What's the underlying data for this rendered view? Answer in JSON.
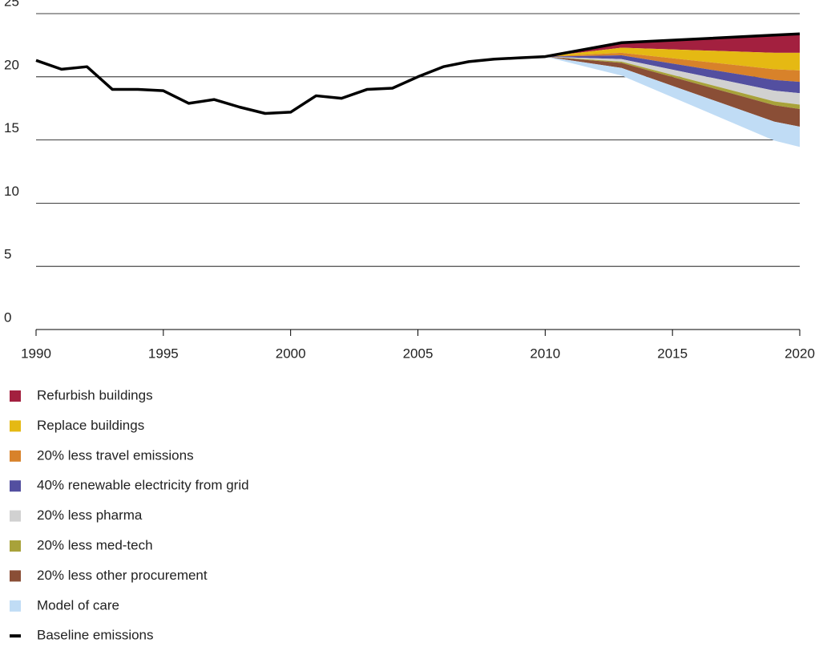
{
  "chart_data": {
    "type": "area",
    "xlim": [
      1990,
      2020
    ],
    "xticks": [
      1990,
      1995,
      2000,
      2005,
      2010,
      2015,
      2020
    ],
    "ylim": [
      0,
      25
    ],
    "yticks": [
      0,
      5,
      10,
      15,
      20,
      25
    ],
    "grid": true,
    "legend": "bottom-left",
    "baseline": {
      "name": "Baseline emissions",
      "color": "#000000",
      "x": [
        1990,
        1991,
        1992,
        1993,
        1994,
        1995,
        1996,
        1997,
        1998,
        1999,
        2000,
        2001,
        2002,
        2003,
        2004,
        2005,
        2006,
        2007,
        2008,
        2009,
        2010,
        2013,
        2019,
        2020
      ],
      "values": [
        21.3,
        20.6,
        20.8,
        19.0,
        19.0,
        18.9,
        17.9,
        18.2,
        17.6,
        17.1,
        17.2,
        18.5,
        18.3,
        19.0,
        19.1,
        20.0,
        20.8,
        21.2,
        21.4,
        21.5,
        21.6,
        22.7,
        23.3,
        23.4
      ]
    },
    "wedge_x": [
      2010,
      2013,
      2019,
      2020
    ],
    "series": [
      {
        "name": "Refurbish buildings",
        "color": "#a3203f",
        "values": [
          0,
          0.4,
          1.4,
          1.5
        ]
      },
      {
        "name": "Replace buildings",
        "color": "#e5b913",
        "values": [
          0,
          0.4,
          1.3,
          1.4
        ]
      },
      {
        "name": "20% less travel emissions",
        "color": "#d8822a",
        "values": [
          0,
          0.2,
          0.85,
          0.9
        ]
      },
      {
        "name": "40% renewable electricity from grid",
        "color": "#534fa0",
        "values": [
          0,
          0.3,
          0.85,
          0.9
        ]
      },
      {
        "name": "20% less pharma",
        "color": "#d1d1d1",
        "values": [
          0,
          0.2,
          0.85,
          0.9
        ]
      },
      {
        "name": "20% less med-tech",
        "color": "#a8a23a",
        "values": [
          0,
          0.1,
          0.3,
          0.35
        ]
      },
      {
        "name": "20% less other procurement",
        "color": "#8a4e36",
        "values": [
          0,
          0.4,
          1.3,
          1.4
        ]
      },
      {
        "name": "Model of care",
        "color": "#c0dcf5",
        "values": [
          0,
          0.6,
          1.5,
          1.6
        ]
      }
    ]
  }
}
